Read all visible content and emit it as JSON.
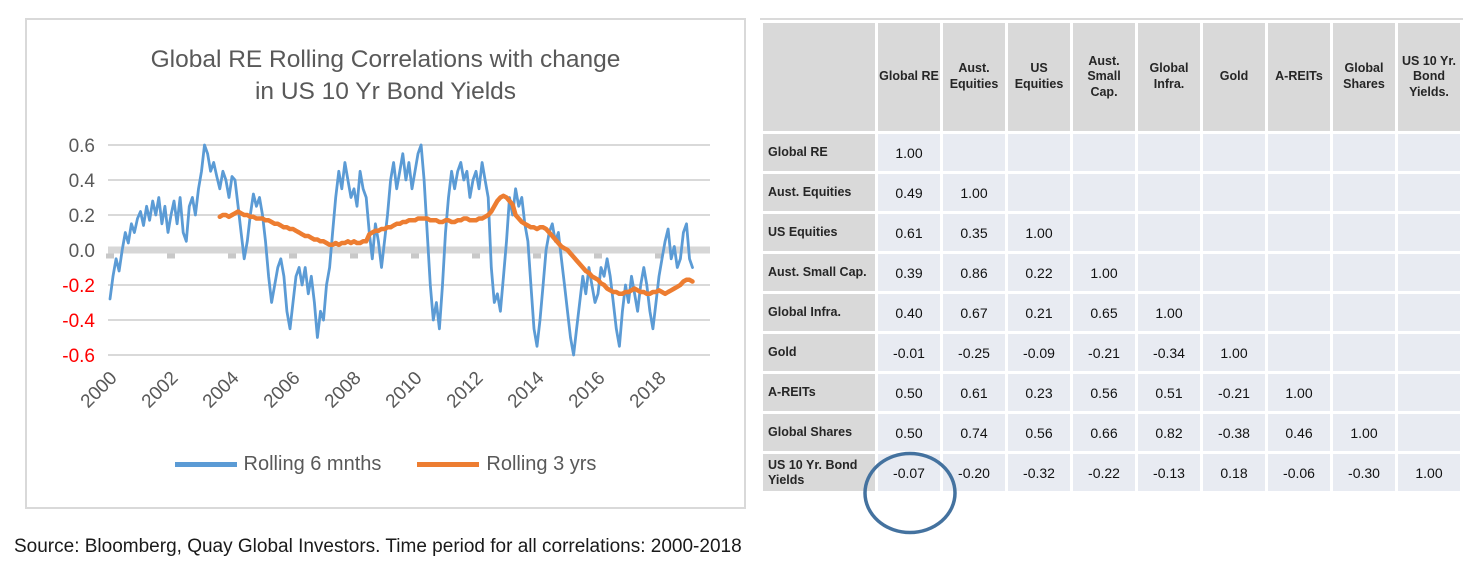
{
  "chart_data": [
    {
      "type": "line",
      "title": "Global RE Rolling Correlations with change in US 10 Yr Bond Yields",
      "title_lines": [
        "Global RE Rolling Correlations with change",
        "in US 10 Yr Bond Yields"
      ],
      "xlabel": "",
      "ylabel": "",
      "ylim": [
        -0.6,
        0.6
      ],
      "yticks": [
        0.6,
        0.4,
        0.2,
        0.0,
        -0.2,
        -0.4,
        -0.6
      ],
      "xticks": [
        2000,
        2002,
        2004,
        2006,
        2008,
        2010,
        2012,
        2014,
        2016,
        2018
      ],
      "grid": true,
      "legend_position": "bottom",
      "series": [
        {
          "name": "Rolling 6 mnths",
          "color": "#5B9BD5",
          "stroke_width": 2.8,
          "x_start": 2000.0,
          "x_step": 0.1,
          "values": [
            -0.28,
            -0.15,
            -0.05,
            -0.12,
            0,
            0.1,
            0.04,
            0.15,
            0.1,
            0.18,
            0.22,
            0.14,
            0.25,
            0.17,
            0.28,
            0.2,
            0.3,
            0.15,
            0.25,
            0.1,
            0.2,
            0.28,
            0.15,
            0.3,
            0.1,
            0.05,
            0.25,
            0.3,
            0.2,
            0.35,
            0.45,
            0.6,
            0.55,
            0.45,
            0.5,
            0.42,
            0.35,
            0.45,
            0.4,
            0.3,
            0.42,
            0.4,
            0.25,
            0.1,
            -0.05,
            0.05,
            0.2,
            0.32,
            0.25,
            0.3,
            0.2,
            0.05,
            -0.15,
            -0.3,
            -0.2,
            -0.1,
            -0.05,
            -0.15,
            -0.35,
            -0.45,
            -0.3,
            -0.15,
            -0.1,
            -0.2,
            -0.1,
            -0.25,
            -0.15,
            -0.3,
            -0.5,
            -0.35,
            -0.4,
            -0.2,
            -0.1,
            0.1,
            0.3,
            0.45,
            0.35,
            0.5,
            0.4,
            0.3,
            0.35,
            0.25,
            0.45,
            0.35,
            0.3,
            0.1,
            -0.05,
            0.15,
            0.05,
            -0.1,
            0.05,
            0.2,
            0.4,
            0.5,
            0.35,
            0.45,
            0.55,
            0.4,
            0.5,
            0.35,
            0.45,
            0.55,
            0.6,
            0.4,
            0.1,
            -0.2,
            -0.4,
            -0.3,
            -0.45,
            -0.2,
            0.1,
            0.3,
            0.45,
            0.35,
            0.45,
            0.5,
            0.4,
            0.45,
            0.3,
            0.4,
            0.45,
            0.35,
            0.5,
            0.4,
            0.3,
            -0.1,
            -0.3,
            -0.25,
            -0.35,
            -0.15,
            0.05,
            0.3,
            0.2,
            0.35,
            0.25,
            0.3,
            0.15,
            0.05,
            -0.2,
            -0.45,
            -0.55,
            -0.4,
            -0.2,
            0,
            0.1,
            0.15,
            0.05,
            0.1,
            -0.05,
            -0.2,
            -0.35,
            -0.5,
            -0.6,
            -0.45,
            -0.3,
            -0.15,
            -0.25,
            -0.1,
            -0.2,
            -0.3,
            -0.25,
            -0.1,
            -0.15,
            -0.05,
            -0.15,
            -0.3,
            -0.45,
            -0.55,
            -0.35,
            -0.2,
            -0.3,
            -0.15,
            -0.25,
            -0.35,
            -0.2,
            -0.1,
            -0.2,
            -0.35,
            -0.45,
            -0.3,
            -0.15,
            -0.05,
            0.05,
            0.12,
            -0.05,
            0.02,
            -0.1,
            -0.05,
            0.1,
            0.15,
            -0.05,
            -0.1
          ]
        },
        {
          "name": "Rolling 3 yrs",
          "color": "#ED7D31",
          "stroke_width": 4.5,
          "x_start": 2003.6,
          "x_step": 0.1,
          "values": [
            0.19,
            0.2,
            0.2,
            0.19,
            0.2,
            0.21,
            0.22,
            0.21,
            0.2,
            0.2,
            0.19,
            0.19,
            0.18,
            0.18,
            0.18,
            0.17,
            0.17,
            0.16,
            0.15,
            0.15,
            0.14,
            0.13,
            0.13,
            0.12,
            0.12,
            0.11,
            0.1,
            0.09,
            0.08,
            0.08,
            0.07,
            0.06,
            0.06,
            0.05,
            0.05,
            0.04,
            0.03,
            0.03,
            0.04,
            0.03,
            0.04,
            0.04,
            0.05,
            0.04,
            0.05,
            0.04,
            0.04,
            0.05,
            0.05,
            0.09,
            0.1,
            0.11,
            0.11,
            0.12,
            0.12,
            0.13,
            0.13,
            0.14,
            0.15,
            0.15,
            0.16,
            0.16,
            0.17,
            0.17,
            0.17,
            0.18,
            0.18,
            0.18,
            0.18,
            0.17,
            0.17,
            0.17,
            0.16,
            0.16,
            0.17,
            0.17,
            0.16,
            0.16,
            0.17,
            0.17,
            0.18,
            0.18,
            0.17,
            0.17,
            0.17,
            0.18,
            0.18,
            0.19,
            0.2,
            0.22,
            0.25,
            0.28,
            0.3,
            0.31,
            0.3,
            0.28,
            0.26,
            0.2,
            0.18,
            0.16,
            0.15,
            0.14,
            0.13,
            0.13,
            0.12,
            0.13,
            0.13,
            0.12,
            0.1,
            0.08,
            0.06,
            0.04,
            0.02,
            0.01,
            0,
            -0.02,
            -0.04,
            -0.06,
            -0.08,
            -0.1,
            -0.12,
            -0.13,
            -0.15,
            -0.16,
            -0.17,
            -0.19,
            -0.2,
            -0.22,
            -0.23,
            -0.24,
            -0.24,
            -0.25,
            -0.25,
            -0.24,
            -0.24,
            -0.23,
            -0.22,
            -0.23,
            -0.24,
            -0.24,
            -0.25,
            -0.25,
            -0.24,
            -0.24,
            -0.23,
            -0.24,
            -0.25,
            -0.24,
            -0.23,
            -0.22,
            -0.21,
            -0.2,
            -0.18,
            -0.17,
            -0.17,
            -0.18
          ]
        }
      ]
    },
    {
      "type": "table",
      "columns": [
        "Global RE",
        "Aust. Equities",
        "US Equities",
        "Aust. Small Cap.",
        "Global Infra.",
        "Gold",
        "A-REITs",
        "Global Shares",
        "US 10 Yr. Bond Yields."
      ],
      "rows": [
        {
          "label": "Global RE",
          "values": [
            "1.00",
            "",
            "",
            "",
            "",
            "",
            "",
            "",
            ""
          ]
        },
        {
          "label": "Aust. Equities",
          "values": [
            "0.49",
            "1.00",
            "",
            "",
            "",
            "",
            "",
            "",
            ""
          ]
        },
        {
          "label": "US Equities",
          "values": [
            "0.61",
            "0.35",
            "1.00",
            "",
            "",
            "",
            "",
            "",
            ""
          ]
        },
        {
          "label": "Aust. Small Cap.",
          "values": [
            "0.39",
            "0.86",
            "0.22",
            "1.00",
            "",
            "",
            "",
            "",
            ""
          ]
        },
        {
          "label": "Global Infra.",
          "values": [
            "0.40",
            "0.67",
            "0.21",
            "0.65",
            "1.00",
            "",
            "",
            "",
            ""
          ]
        },
        {
          "label": "Gold",
          "values": [
            "-0.01",
            "-0.25",
            "-0.09",
            "-0.21",
            "-0.34",
            "1.00",
            "",
            "",
            ""
          ]
        },
        {
          "label": "A-REITs",
          "values": [
            "0.50",
            "0.61",
            "0.23",
            "0.56",
            "0.51",
            "-0.21",
            "1.00",
            "",
            ""
          ]
        },
        {
          "label": "Global Shares",
          "values": [
            "0.50",
            "0.74",
            "0.56",
            "0.66",
            "0.82",
            "-0.38",
            "0.46",
            "1.00",
            ""
          ]
        },
        {
          "label": "US 10 Yr. Bond Yields",
          "values": [
            "-0.07",
            "-0.20",
            "-0.32",
            "-0.22",
            "-0.13",
            "0.18",
            "-0.06",
            "-0.30",
            "1.00"
          ]
        }
      ]
    }
  ],
  "annotation": {
    "shape": "ellipse",
    "circled_value": "-0.07",
    "circled_row": "US 10 Yr. Bond Yields",
    "circled_column": "Global RE",
    "color": "#44729F"
  },
  "source_text": "Source: Bloomberg, Quay Global Investors. Time period for all correlations: 2000-2018",
  "colors": {
    "series_blue": "#5B9BD5",
    "series_orange": "#ED7D31",
    "gridline": "#D9D9D9",
    "zero_band": "#D7D7D7",
    "zero_tick": "#C8C8C8",
    "axis_text": "#595959",
    "negative_axis_text": "#FF0000",
    "title_text": "#595959",
    "table_header_bg": "#D9D9D9",
    "table_cell_bg": "#E8EBF2",
    "panel_border": "#D9D9D9",
    "annotation_circle": "#44729F"
  }
}
